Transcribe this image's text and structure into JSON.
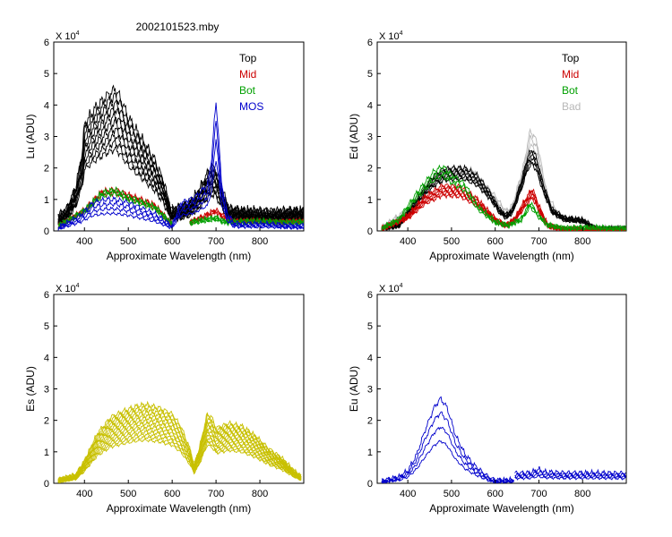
{
  "figure_title": "2002101523.mby",
  "colors": {
    "top": "#000000",
    "mid": "#cc0000",
    "bot": "#00a000",
    "mos": "#0000cc",
    "bad": "#b8b8b8",
    "es": "#c8c000",
    "eu": "#0000cc"
  },
  "chart_data": [
    {
      "id": "lu",
      "type": "line",
      "xlabel": "Approximate Wavelength (nm)",
      "ylabel": "Lu (ADU)",
      "exponent_label": "X 10",
      "exponent_power": "4",
      "xlim": [
        330,
        900
      ],
      "ylim": [
        0,
        6
      ],
      "xticks": [
        400,
        500,
        600,
        700,
        800
      ],
      "yticks": [
        0,
        1,
        2,
        3,
        4,
        5,
        6
      ],
      "legend_position": "top-right",
      "legend": [
        {
          "label": "Top",
          "color": "#000000"
        },
        {
          "label": "Mid",
          "color": "#cc0000"
        },
        {
          "label": "Bot",
          "color": "#00a000"
        },
        {
          "label": "MOS",
          "color": "#0000cc"
        }
      ],
      "series": [
        {
          "name": "Top",
          "color": "#000000",
          "count": 10,
          "scale_min": 1.3,
          "scale_max": 2.25,
          "segments": [
            [
              [
                340,
                0.2
              ],
              [
                360,
                0.3
              ],
              [
                380,
                0.6
              ],
              [
                395,
                1.1
              ],
              [
                400,
                1.5
              ],
              [
                420,
                1.7
              ],
              [
                450,
                1.9
              ],
              [
                470,
                2.0
              ],
              [
                480,
                1.9
              ],
              [
                500,
                1.6
              ],
              [
                530,
                1.3
              ],
              [
                560,
                1.0
              ],
              [
                580,
                0.7
              ],
              [
                595,
                0.35
              ],
              [
                600,
                0.25
              ]
            ],
            [
              [
                600,
                0.3
              ],
              [
                620,
                0.32
              ],
              [
                640,
                0.38
              ],
              [
                660,
                0.55
              ],
              [
                680,
                0.8
              ],
              [
                690,
                0.9
              ],
              [
                700,
                0.85
              ],
              [
                715,
                0.55
              ],
              [
                730,
                0.3
              ],
              [
                760,
                0.27
              ],
              [
                900,
                0.27
              ]
            ]
          ]
        },
        {
          "name": "Mid",
          "color": "#cc0000",
          "count": 3,
          "scale_min": 1.0,
          "scale_max": 1.1,
          "segments": [
            [
              [
                340,
                0.15
              ],
              [
                400,
                0.6
              ],
              [
                440,
                1.15
              ],
              [
                470,
                1.2
              ],
              [
                500,
                1.05
              ],
              [
                560,
                0.75
              ],
              [
                600,
                0.2
              ]
            ],
            [
              [
                640,
                0.25
              ],
              [
                670,
                0.4
              ],
              [
                690,
                0.55
              ],
              [
                700,
                0.6
              ],
              [
                720,
                0.4
              ],
              [
                740,
                0.28
              ],
              [
                900,
                0.27
              ]
            ]
          ]
        },
        {
          "name": "Bot",
          "color": "#00a000",
          "count": 3,
          "scale_min": 1.0,
          "scale_max": 1.1,
          "segments": [
            [
              [
                340,
                0.15
              ],
              [
                400,
                0.6
              ],
              [
                440,
                1.1
              ],
              [
                470,
                1.2
              ],
              [
                500,
                1.0
              ],
              [
                560,
                0.7
              ],
              [
                600,
                0.2
              ]
            ],
            [
              [
                640,
                0.25
              ],
              [
                690,
                0.35
              ],
              [
                700,
                0.38
              ],
              [
                720,
                0.28
              ],
              [
                900,
                0.26
              ]
            ]
          ]
        },
        {
          "name": "MOS",
          "color": "#0000cc",
          "count": 4,
          "scale_min": 0.55,
          "scale_max": 1.0,
          "segments": [
            [
              [
                340,
                0.1
              ],
              [
                390,
                0.5
              ],
              [
                420,
                0.9
              ],
              [
                450,
                1.0
              ],
              [
                470,
                1.0
              ],
              [
                500,
                0.9
              ],
              [
                560,
                0.55
              ],
              [
                600,
                0.15
              ]
            ],
            [
              [
                600,
                0.2
              ],
              [
                620,
                0.9
              ],
              [
                650,
                1.05
              ],
              [
                680,
                1.45
              ],
              [
                690,
                2.3
              ],
              [
                695,
                3.3
              ],
              [
                700,
                4.1
              ],
              [
                705,
                3.2
              ],
              [
                712,
                1.6
              ],
              [
                725,
                0.6
              ],
              [
                740,
                0.25
              ],
              [
                900,
                0.18
              ]
            ]
          ]
        }
      ]
    },
    {
      "id": "ed",
      "type": "line",
      "xlabel": "Approximate Wavelength (nm)",
      "ylabel": "Ed (ADU)",
      "exponent_label": "X 10",
      "exponent_power": "4",
      "xlim": [
        330,
        900
      ],
      "ylim": [
        0,
        6
      ],
      "xticks": [
        400,
        500,
        600,
        700,
        800
      ],
      "yticks": [
        0,
        1,
        2,
        3,
        4,
        5,
        6
      ],
      "legend_position": "top-right",
      "legend": [
        {
          "label": "Top",
          "color": "#000000"
        },
        {
          "label": "Mid",
          "color": "#cc0000"
        },
        {
          "label": "Bot",
          "color": "#00a000"
        },
        {
          "label": "Bad",
          "color": "#b8b8b8"
        }
      ],
      "series": [
        {
          "name": "Bad",
          "color": "#b8b8b8",
          "count": 3,
          "scale_min": 0.95,
          "scale_max": 1.1,
          "segments": [
            [
              [
                340,
                0.1
              ],
              [
                400,
                0.6
              ],
              [
                450,
                1.5
              ],
              [
                500,
                1.8
              ],
              [
                550,
                1.75
              ],
              [
                600,
                1.0
              ],
              [
                625,
                0.55
              ],
              [
                640,
                0.75
              ],
              [
                665,
                1.9
              ],
              [
                680,
                2.9
              ],
              [
                695,
                2.6
              ],
              [
                720,
                1.0
              ],
              [
                750,
                0.4
              ],
              [
                800,
                0.3
              ],
              [
                830,
                0.1
              ],
              [
                900,
                0.05
              ]
            ]
          ]
        },
        {
          "name": "Top",
          "color": "#000000",
          "count": 6,
          "scale_min": 0.82,
          "scale_max": 1.0,
          "segments": [
            [
              [
                340,
                0.1
              ],
              [
                380,
                0.2
              ],
              [
                400,
                0.6
              ],
              [
                430,
                1.2
              ],
              [
                460,
                1.75
              ],
              [
                480,
                1.95
              ],
              [
                500,
                2.0
              ],
              [
                530,
                2.0
              ],
              [
                560,
                1.75
              ],
              [
                590,
                1.2
              ],
              [
                610,
                0.7
              ],
              [
                625,
                0.5
              ],
              [
                640,
                0.7
              ],
              [
                660,
                1.6
              ],
              [
                675,
                2.4
              ],
              [
                685,
                2.6
              ],
              [
                695,
                2.3
              ],
              [
                710,
                1.5
              ],
              [
                730,
                0.7
              ],
              [
                760,
                0.4
              ],
              [
                800,
                0.35
              ],
              [
                830,
                0.08
              ],
              [
                900,
                0.05
              ]
            ]
          ]
        },
        {
          "name": "Mid",
          "color": "#cc0000",
          "count": 6,
          "scale_min": 0.78,
          "scale_max": 1.0,
          "segments": [
            [
              [
                340,
                0.08
              ],
              [
                400,
                0.5
              ],
              [
                440,
                1.1
              ],
              [
                480,
                1.45
              ],
              [
                520,
                1.4
              ],
              [
                560,
                1.0
              ],
              [
                600,
                0.4
              ],
              [
                625,
                0.2
              ],
              [
                645,
                0.4
              ],
              [
                665,
                0.9
              ],
              [
                685,
                1.35
              ],
              [
                700,
                0.8
              ],
              [
                720,
                0.2
              ],
              [
                760,
                0.05
              ],
              [
                900,
                0.03
              ]
            ]
          ]
        },
        {
          "name": "Bot",
          "color": "#00a000",
          "count": 3,
          "scale_min": 0.85,
          "scale_max": 1.0,
          "segments": [
            [
              [
                340,
                0.08
              ],
              [
                380,
                0.4
              ],
              [
                420,
                1.2
              ],
              [
                460,
                1.9
              ],
              [
                480,
                2.05
              ],
              [
                500,
                1.8
              ],
              [
                530,
                1.5
              ],
              [
                560,
                0.8
              ],
              [
                600,
                0.3
              ],
              [
                630,
                0.2
              ],
              [
                660,
                0.4
              ],
              [
                680,
                0.9
              ],
              [
                700,
                0.5
              ],
              [
                720,
                0.2
              ],
              [
                760,
                0.1
              ],
              [
                900,
                0.1
              ]
            ]
          ]
        }
      ]
    },
    {
      "id": "es",
      "type": "line",
      "xlabel": "Approximate Wavelength (nm)",
      "ylabel": "Es (ADU)",
      "exponent_label": "X 10",
      "exponent_power": "4",
      "xlim": [
        330,
        900
      ],
      "ylim": [
        0,
        6
      ],
      "xticks": [
        400,
        500,
        600,
        700,
        800
      ],
      "yticks": [
        0,
        1,
        2,
        3,
        4,
        5,
        6
      ],
      "legend": [],
      "series": [
        {
          "name": "Es",
          "color": "#c8c000",
          "count": 14,
          "scale_min": 0.55,
          "scale_max": 1.0,
          "segments": [
            [
              [
                340,
                0.12
              ],
              [
                380,
                0.25
              ],
              [
                400,
                0.7
              ],
              [
                430,
                1.6
              ],
              [
                460,
                2.1
              ],
              [
                490,
                2.3
              ],
              [
                520,
                2.45
              ],
              [
                540,
                2.5
              ],
              [
                570,
                2.4
              ],
              [
                600,
                2.2
              ],
              [
                620,
                1.8
              ],
              [
                640,
                1.1
              ],
              [
                650,
                0.6
              ],
              [
                660,
                1.0
              ],
              [
                670,
                1.6
              ],
              [
                680,
                2.2
              ],
              [
                690,
                2.1
              ],
              [
                700,
                1.75
              ],
              [
                730,
                1.9
              ],
              [
                760,
                1.8
              ],
              [
                790,
                1.5
              ],
              [
                820,
                1.1
              ],
              [
                850,
                0.8
              ],
              [
                880,
                0.35
              ],
              [
                895,
                0.2
              ]
            ]
          ]
        }
      ]
    },
    {
      "id": "eu",
      "type": "line",
      "xlabel": "Approximate Wavelength (nm)",
      "ylabel": "Eu (ADU)",
      "exponent_label": "X 10",
      "exponent_power": "4",
      "xlim": [
        330,
        900
      ],
      "ylim": [
        0,
        6
      ],
      "xticks": [
        400,
        500,
        600,
        700,
        800
      ],
      "yticks": [
        0,
        1,
        2,
        3,
        4,
        5,
        6
      ],
      "legend": [],
      "series": [
        {
          "name": "Eu",
          "color": "#0000cc",
          "count": 4,
          "scale_min": 0.5,
          "scale_max": 1.0,
          "segments": [
            [
              [
                340,
                0.08
              ],
              [
                380,
                0.2
              ],
              [
                400,
                0.4
              ],
              [
                420,
                0.9
              ],
              [
                440,
                1.7
              ],
              [
                460,
                2.4
              ],
              [
                475,
                2.7
              ],
              [
                490,
                2.4
              ],
              [
                510,
                1.5
              ],
              [
                530,
                0.95
              ],
              [
                550,
                0.6
              ],
              [
                575,
                0.3
              ],
              [
                590,
                0.15
              ],
              [
                600,
                0.1
              ],
              [
                640,
                0.1
              ]
            ],
            [
              [
                640,
                0.1
              ]
            ],
            [
              [
                645,
                0.32
              ],
              [
                680,
                0.33
              ],
              [
                700,
                0.45
              ],
              [
                710,
                0.36
              ],
              [
                760,
                0.33
              ],
              [
                900,
                0.32
              ]
            ]
          ]
        }
      ]
    }
  ]
}
